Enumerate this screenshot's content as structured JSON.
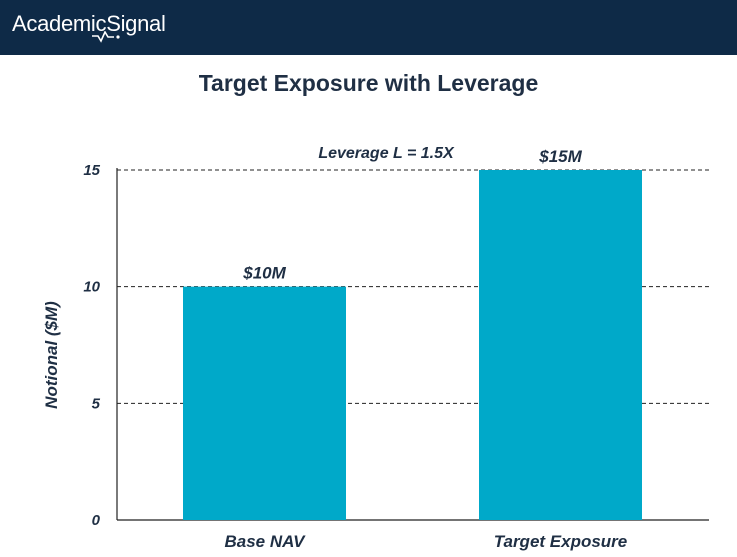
{
  "header": {
    "brand": "AcademicSignal",
    "brand_color": "#0e2a47"
  },
  "chart_data": {
    "type": "bar",
    "title": "Target Exposure with Leverage",
    "categories": [
      "Base NAV",
      "Target Exposure"
    ],
    "values": [
      10,
      15
    ],
    "data_labels": [
      "$10M",
      "$15M"
    ],
    "xlabel": "",
    "ylabel": "Notional ($M)",
    "ylim": [
      0,
      15
    ],
    "yticks": [
      0,
      5,
      10,
      15
    ],
    "grid": true,
    "annotation": "Leverage L = 1.5X",
    "bar_color": "#00a9c9"
  }
}
